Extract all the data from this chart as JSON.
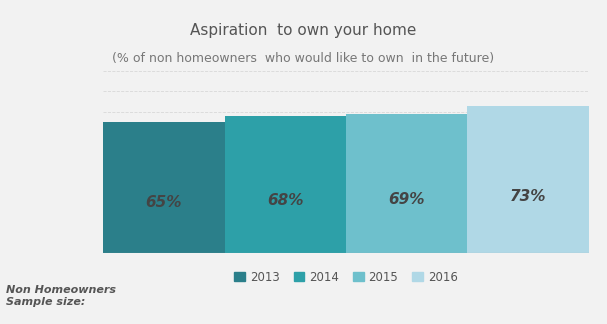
{
  "title": "Aspiration  to own your home",
  "subtitle": "(% of non homeowners  who would like to own  in the future)",
  "categories": [
    "2013",
    "2014",
    "2015",
    "2016"
  ],
  "values": [
    65,
    68,
    69,
    73
  ],
  "bar_colors": [
    "#2b7f8a",
    "#2da0a8",
    "#6ec0cc",
    "#b0d8e6"
  ],
  "bar_labels": [
    "65%",
    "68%",
    "69%",
    "73%"
  ],
  "label_color": "#444444",
  "legend_labels": [
    "2013",
    "2014",
    "2015",
    "2016"
  ],
  "footer_text": "Non Homeowners\nSample size:",
  "ylim": [
    0,
    90
  ],
  "background_color": "#f2f2f2",
  "grid_color": "#d8d8d8",
  "title_fontsize": 11,
  "subtitle_fontsize": 9,
  "bar_label_fontsize": 11
}
